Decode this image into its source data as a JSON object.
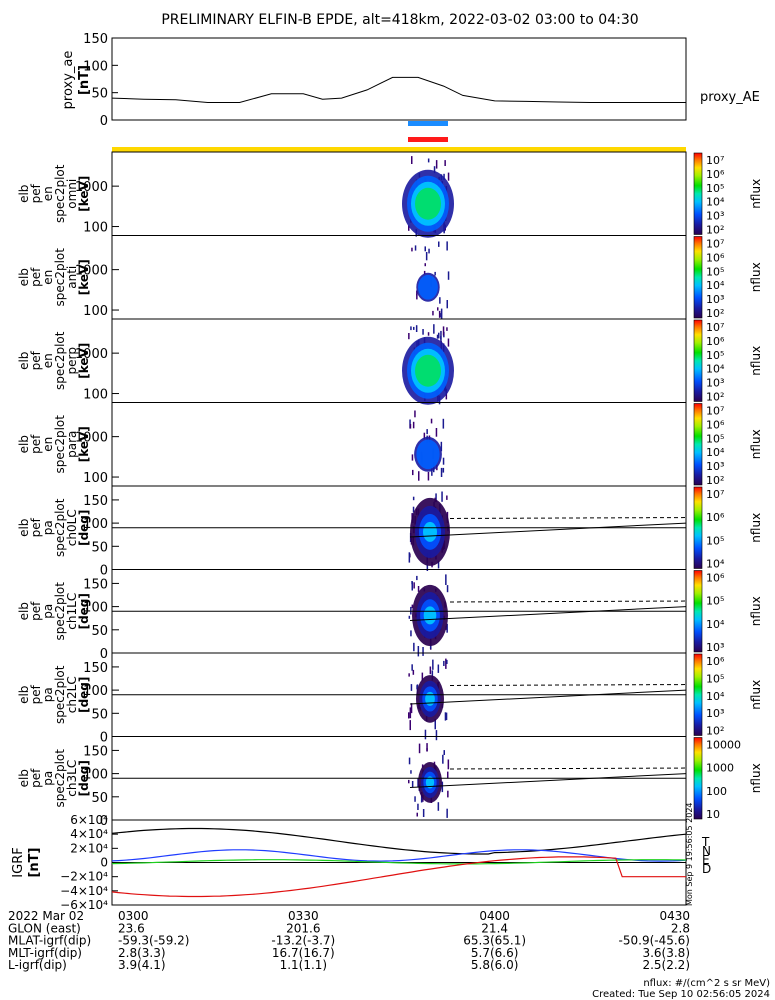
{
  "title": "PRELIMINARY ELFIN-B EPDE, alt=418km, 2022-03-02 03:00 to 04:30",
  "colors": {
    "flag_yellow": "#ffd800",
    "bar_blue": "#1a8cff",
    "bar_red": "#ff1a1a",
    "grf_t": "#000000",
    "grf_n": "#1f3cff",
    "grf_e": "#1fd01f",
    "grf_d": "#e01010"
  },
  "chart_data": [
    {
      "type": "line",
      "panel": "proxy_ae",
      "ylabel": "proxy_ae\n[nT]",
      "ylim": [
        0,
        150
      ],
      "yticks": [
        "150",
        "100",
        "50",
        "0"
      ],
      "legend": "proxy_AE",
      "x_minutes": [
        0,
        5,
        10,
        15,
        20,
        25,
        30,
        33,
        36,
        40,
        44,
        48,
        52,
        55,
        60,
        65,
        70,
        75,
        80,
        85,
        90
      ],
      "values": [
        40,
        38,
        37,
        32,
        32,
        48,
        48,
        38,
        40,
        55,
        78,
        78,
        62,
        45,
        35,
        34,
        33,
        32,
        32,
        32,
        32
      ]
    },
    {
      "type": "heatmap",
      "panel": "spec omni",
      "ylabel": [
        "elb",
        "pef",
        "en",
        "spec2plot",
        "omni",
        "[keV]"
      ],
      "scale": "log",
      "yticks": [
        "1000",
        "100"
      ],
      "colorbar_label": "nflux",
      "colorbar_ticks": [
        "10⁷",
        "10⁶",
        "10⁵",
        "10⁴",
        "10³",
        "10²"
      ]
    },
    {
      "type": "heatmap",
      "panel": "spec anti",
      "ylabel": [
        "elb",
        "pef",
        "en",
        "spec2plot",
        "anti",
        "[keV]"
      ],
      "scale": "log",
      "yticks": [
        "1000",
        "100"
      ],
      "colorbar_label": "nflux",
      "colorbar_ticks": [
        "10⁷",
        "10⁶",
        "10⁵",
        "10⁴",
        "10³",
        "10²"
      ]
    },
    {
      "type": "heatmap",
      "panel": "spec perp",
      "ylabel": [
        "elb",
        "pef",
        "en",
        "spec2plot",
        "perp",
        "[keV]"
      ],
      "scale": "log",
      "yticks": [
        "1000",
        "100"
      ],
      "colorbar_label": "nflux",
      "colorbar_ticks": [
        "10⁷",
        "10⁶",
        "10⁵",
        "10⁴",
        "10³",
        "10²"
      ]
    },
    {
      "type": "heatmap",
      "panel": "spec para",
      "ylabel": [
        "elb",
        "pef",
        "en",
        "spec2plot",
        "para",
        "[keV]"
      ],
      "scale": "log",
      "yticks": [
        "1000",
        "100"
      ],
      "colorbar_label": "nflux",
      "colorbar_ticks": [
        "10⁷",
        "10⁶",
        "10⁵",
        "10⁴",
        "10³",
        "10²"
      ]
    },
    {
      "type": "heatmap",
      "panel": "pa ch0LC",
      "ylabel": [
        "elb",
        "pef",
        "pa",
        "spec2plot",
        "ch0LC",
        "[deg]"
      ],
      "ylim": [
        0,
        180
      ],
      "yticks": [
        "150",
        "100",
        "50",
        "0"
      ],
      "colorbar_label": "nflux",
      "colorbar_ticks": [
        "10⁷",
        "10⁶",
        "10⁵",
        "10⁴"
      ]
    },
    {
      "type": "heatmap",
      "panel": "pa ch1LC",
      "ylabel": [
        "elb",
        "pef",
        "pa",
        "spec2plot",
        "ch1LC",
        "[deg]"
      ],
      "ylim": [
        0,
        180
      ],
      "yticks": [
        "150",
        "100",
        "50",
        "0"
      ],
      "colorbar_label": "nflux",
      "colorbar_ticks": [
        "10⁶",
        "10⁵",
        "10⁴",
        "10³"
      ]
    },
    {
      "type": "heatmap",
      "panel": "pa ch2LC",
      "ylabel": [
        "elb",
        "pef",
        "pa",
        "spec2plot",
        "ch2LC",
        "[deg]"
      ],
      "ylim": [
        0,
        180
      ],
      "yticks": [
        "150",
        "100",
        "50",
        "0"
      ],
      "colorbar_label": "nflux",
      "colorbar_ticks": [
        "10⁶",
        "10⁵",
        "10⁴",
        "10³",
        "10²"
      ]
    },
    {
      "type": "heatmap",
      "panel": "pa ch3LC",
      "ylabel": [
        "elb",
        "pef",
        "pa",
        "spec2plot",
        "ch3LC",
        "[deg]"
      ],
      "ylim": [
        0,
        180
      ],
      "yticks": [
        "150",
        "100",
        "50",
        "0"
      ],
      "colorbar_label": "nflux",
      "colorbar_ticks": [
        "10000",
        "1000",
        "100",
        "10"
      ]
    },
    {
      "type": "line",
      "panel": "IGRF",
      "ylabel": "IGRF\n[nT]",
      "ylim": [
        -60000,
        60000
      ],
      "yticks": [
        "6×10⁴",
        "4×10⁴",
        "2×10⁴",
        "0",
        "−2×10⁴",
        "−4×10⁴",
        "−6×10⁴"
      ],
      "legend": [
        "T",
        "N",
        "E",
        "D"
      ]
    }
  ],
  "footer": {
    "rows": [
      {
        "label": "2022 Mar 02",
        "values": [
          "0300",
          "0330",
          "0400",
          "0430"
        ]
      },
      {
        "label": "GLON (east)",
        "values": [
          "23.6",
          "201.6",
          "21.4",
          "2.8"
        ]
      },
      {
        "label": "MLAT-igrf(dip)",
        "values": [
          "-59.3(-59.2)",
          "-13.2(-3.7)",
          "65.3(65.1)",
          "-50.9(-45.6)"
        ]
      },
      {
        "label": "MLT-igrf(dip)",
        "values": [
          "2.8(3.3)",
          "16.7(16.7)",
          "5.7(6.6)",
          "3.6(3.8)"
        ]
      },
      {
        "label": "L-igrf(dip)",
        "values": [
          "3.9(4.1)",
          "1.1(1.1)",
          "5.8(6.0)",
          "2.5(2.2)"
        ]
      }
    ],
    "units_note": "nflux: #/(cm^2 s sr MeV)",
    "created": "Created: Tue Sep 10 02:56:05 2024",
    "side_stamp": "Mon Sep 9 19:56:05 2024"
  }
}
